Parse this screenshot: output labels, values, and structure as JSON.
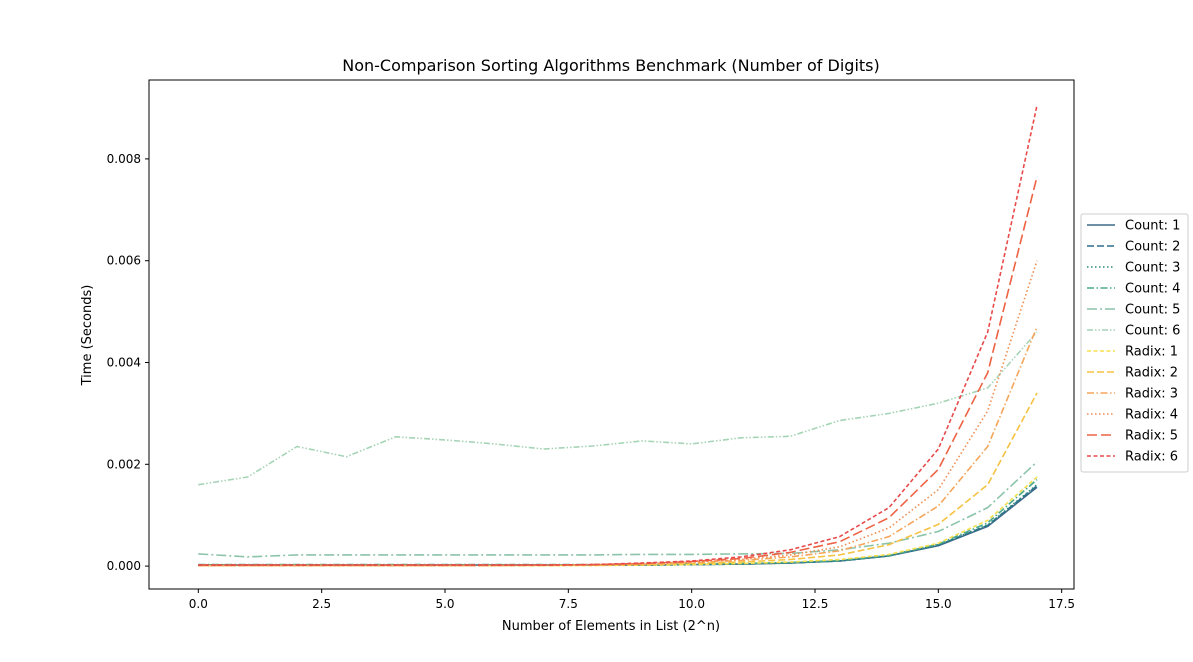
{
  "chart_data": {
    "type": "line",
    "title": "Non-Comparison Sorting Algorithms Benchmark (Number of Digits)",
    "xlabel": "Number of Elements in List (2^n)",
    "ylabel": "Time (Seconds)",
    "xlim": [
      -1.0,
      17.75
    ],
    "ylim": [
      -0.00045,
      0.00955
    ],
    "xticks": [
      0.0,
      2.5,
      5.0,
      7.5,
      10.0,
      12.5,
      15.0,
      17.5
    ],
    "xtick_labels": [
      "0.0",
      "2.5",
      "5.0",
      "7.5",
      "10.0",
      "12.5",
      "15.0",
      "17.5"
    ],
    "yticks": [
      0.0,
      0.002,
      0.004,
      0.006,
      0.008
    ],
    "ytick_labels": [
      "0.000",
      "0.002",
      "0.004",
      "0.006",
      "0.008"
    ],
    "grid": false,
    "legend_position": "outside-right",
    "x": [
      0,
      1,
      2,
      3,
      4,
      5,
      6,
      7,
      8,
      9,
      10,
      11,
      12,
      13,
      14,
      15,
      16,
      17
    ],
    "series": [
      {
        "name": "Count: 1",
        "color": "#3d6b8a",
        "dash": "solid",
        "values": [
          2e-05,
          2e-05,
          2e-05,
          2e-05,
          2e-05,
          2e-05,
          2e-05,
          2e-05,
          2e-05,
          2e-05,
          3e-05,
          4e-05,
          6e-05,
          0.0001,
          0.0002,
          0.0004,
          0.00078,
          0.00155
        ]
      },
      {
        "name": "Count: 2",
        "color": "#2f6f8e",
        "dash": "dashed",
        "values": [
          2e-05,
          2e-05,
          2e-05,
          2e-05,
          2e-05,
          2e-05,
          2e-05,
          2e-05,
          2e-05,
          2e-05,
          3e-05,
          4e-05,
          6e-05,
          0.0001,
          0.0002,
          0.00041,
          0.0008,
          0.00158
        ]
      },
      {
        "name": "Count: 3",
        "color": "#2a8a7a",
        "dash": "dotted",
        "values": [
          2e-05,
          2e-05,
          2e-05,
          2e-05,
          2e-05,
          2e-05,
          2e-05,
          2e-05,
          2e-05,
          2e-05,
          3e-05,
          4e-05,
          6e-05,
          0.0001,
          0.0002,
          0.00042,
          0.00081,
          0.0016
        ]
      },
      {
        "name": "Count: 4",
        "color": "#4aa88a",
        "dash": "dashdot",
        "values": [
          3e-05,
          3e-05,
          3e-05,
          3e-05,
          3e-05,
          3e-05,
          3e-05,
          3e-05,
          3e-05,
          3e-05,
          4e-05,
          5e-05,
          7e-05,
          0.00011,
          0.00021,
          0.00043,
          0.00085,
          0.0017
        ]
      },
      {
        "name": "Count: 5",
        "color": "#8cc4aa",
        "dash": "dashdot-long",
        "values": [
          0.00024,
          0.00018,
          0.00022,
          0.00022,
          0.00022,
          0.00022,
          0.00022,
          0.00022,
          0.00022,
          0.00023,
          0.00023,
          0.00024,
          0.00025,
          0.00032,
          0.00045,
          0.00068,
          0.00115,
          0.00205
        ]
      },
      {
        "name": "Count: 6",
        "color": "#a6d4b6",
        "dash": "dashdotdot",
        "values": [
          0.0016,
          0.00175,
          0.00235,
          0.00215,
          0.00254,
          0.00248,
          0.0024,
          0.0023,
          0.00236,
          0.00246,
          0.0024,
          0.00252,
          0.00255,
          0.00286,
          0.003,
          0.0032,
          0.0035,
          0.0046
        ]
      },
      {
        "name": "Radix: 1",
        "color": "#f5df4d",
        "dash": "dashed-short",
        "values": [
          1e-05,
          1e-05,
          1e-05,
          1e-05,
          1e-05,
          1e-05,
          1e-05,
          1e-05,
          1e-05,
          2e-05,
          3e-05,
          5e-05,
          8e-05,
          0.00013,
          0.00023,
          0.00045,
          0.0009,
          0.00175
        ]
      },
      {
        "name": "Radix: 2",
        "color": "#f5c242",
        "dash": "dashed",
        "values": [
          1e-05,
          1e-05,
          1e-05,
          1e-05,
          1e-05,
          1e-05,
          1e-05,
          1e-05,
          2e-05,
          3e-05,
          5e-05,
          8e-05,
          0.00013,
          0.00022,
          0.00042,
          0.00082,
          0.0016,
          0.0034
        ]
      },
      {
        "name": "Radix: 3",
        "color": "#f4a55a",
        "dash": "dashdot",
        "values": [
          1e-05,
          1e-05,
          1e-05,
          1e-05,
          1e-05,
          1e-05,
          1e-05,
          2e-05,
          2e-05,
          4e-05,
          7e-05,
          0.00011,
          0.00018,
          0.0003,
          0.00058,
          0.00118,
          0.00235,
          0.0047
        ]
      },
      {
        "name": "Radix: 4",
        "color": "#ef8d50",
        "dash": "dotted",
        "values": [
          1e-05,
          1e-05,
          1e-05,
          1e-05,
          1e-05,
          1e-05,
          1e-05,
          2e-05,
          3e-05,
          5e-05,
          8e-05,
          0.00013,
          0.00022,
          0.00038,
          0.00075,
          0.0015,
          0.00305,
          0.006
        ]
      },
      {
        "name": "Radix: 5",
        "color": "#ee6244",
        "dash": "dashed-long",
        "values": [
          2e-05,
          2e-05,
          2e-05,
          2e-05,
          2e-05,
          2e-05,
          2e-05,
          2e-05,
          3e-05,
          5e-05,
          9e-05,
          0.00015,
          0.00027,
          0.00048,
          0.00095,
          0.0019,
          0.0038,
          0.00765
        ]
      },
      {
        "name": "Radix: 6",
        "color": "#e84a4a",
        "dash": "dashed-short",
        "values": [
          2e-05,
          2e-05,
          2e-05,
          2e-05,
          2e-05,
          2e-05,
          2e-05,
          2e-05,
          3e-05,
          6e-05,
          0.0001,
          0.00018,
          0.00032,
          0.00058,
          0.00115,
          0.0023,
          0.0046,
          0.00905
        ]
      }
    ]
  }
}
